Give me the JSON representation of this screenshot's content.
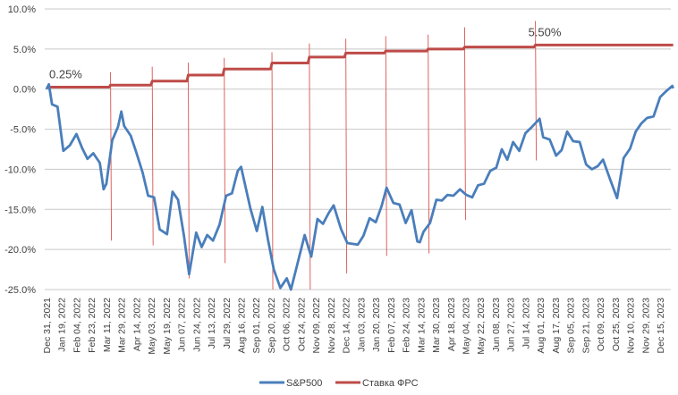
{
  "chart_data": {
    "type": "line",
    "title": "",
    "xlabel": "",
    "ylabel": "",
    "ylim": [
      -25,
      10
    ],
    "y_ticks": [
      "10.0%",
      "5.0%",
      "0.0%",
      "-5.0%",
      "-10.0%",
      "-15.0%",
      "-20.0%",
      "-25.0%"
    ],
    "y_tick_values": [
      10,
      5,
      0,
      -5,
      -10,
      -15,
      -20,
      -25
    ],
    "grid": "horizontal",
    "legend_position": "bottom",
    "x_tick_labels": [
      "Dec 31, 2021",
      "Jan 19, 2022",
      "Feb 04, 2022",
      "Feb 23, 2022",
      "Mar 11, 2022",
      "Mar 29, 2022",
      "Apr 14, 2022",
      "May 03, 2022",
      "May 19, 2022",
      "Jun 07, 2022",
      "Jun 24, 2022",
      "Jul 13, 2022",
      "Jul 29, 2022",
      "Aug 16, 2022",
      "Sep 01, 2022",
      "Sep 20, 2022",
      "Oct 06, 2022",
      "Oct 24, 2022",
      "Nov 09, 2022",
      "Nov 28, 2022",
      "Dec 14, 2022",
      "Jan 03, 2023",
      "Jan 20, 2023",
      "Feb 07, 2023",
      "Feb 24, 2023",
      "Mar 14, 2023",
      "Mar 30, 2023",
      "Apr 18, 2023",
      "May 04, 2023",
      "May 22, 2023",
      "Jun 08, 2023",
      "Jun 27, 2023",
      "Jul 14, 2023",
      "Aug 01, 2023",
      "Aug 17, 2023",
      "Sep 05, 2023",
      "Sep 21, 2023",
      "Oct 09, 2023",
      "Oct 25, 2023",
      "Nov 10, 2023",
      "Nov 29, 2023",
      "Dec 15, 2023"
    ],
    "series": [
      {
        "name": "S&P500",
        "color": "#4a7ebb",
        "points": [
          [
            "2021-12-31",
            0
          ],
          [
            "2022-01-03",
            0.6
          ],
          [
            "2022-01-07",
            -1.9
          ],
          [
            "2022-01-14",
            -2.2
          ],
          [
            "2022-01-21",
            -7.7
          ],
          [
            "2022-01-28",
            -7.0
          ],
          [
            "2022-02-04",
            -5.6
          ],
          [
            "2022-02-11",
            -7.3
          ],
          [
            "2022-02-18",
            -8.7
          ],
          [
            "2022-02-25",
            -8.0
          ],
          [
            "2022-03-04",
            -9.2
          ],
          [
            "2022-03-08",
            -12.5
          ],
          [
            "2022-03-11",
            -11.8
          ],
          [
            "2022-03-18",
            -6.4
          ],
          [
            "2022-03-25",
            -4.7
          ],
          [
            "2022-03-29",
            -2.8
          ],
          [
            "2022-04-01",
            -4.6
          ],
          [
            "2022-04-08",
            -5.8
          ],
          [
            "2022-04-14",
            -7.9
          ],
          [
            "2022-04-22",
            -10.4
          ],
          [
            "2022-04-29",
            -13.3
          ],
          [
            "2022-05-06",
            -13.5
          ],
          [
            "2022-05-12",
            -17.5
          ],
          [
            "2022-05-20",
            -18.1
          ],
          [
            "2022-05-27",
            -12.8
          ],
          [
            "2022-06-03",
            -13.8
          ],
          [
            "2022-06-10",
            -18.2
          ],
          [
            "2022-06-16",
            -23.1
          ],
          [
            "2022-06-24",
            -17.9
          ],
          [
            "2022-07-01",
            -19.7
          ],
          [
            "2022-07-08",
            -18.2
          ],
          [
            "2022-07-15",
            -18.9
          ],
          [
            "2022-07-22",
            -16.9
          ],
          [
            "2022-07-29",
            -13.3
          ],
          [
            "2022-08-05",
            -13.0
          ],
          [
            "2022-08-12",
            -10.2
          ],
          [
            "2022-08-16",
            -9.7
          ],
          [
            "2022-08-26",
            -14.9
          ],
          [
            "2022-09-02",
            -17.7
          ],
          [
            "2022-09-09",
            -14.7
          ],
          [
            "2022-09-16",
            -18.7
          ],
          [
            "2022-09-23",
            -22.5
          ],
          [
            "2022-09-30",
            -24.8
          ],
          [
            "2022-10-07",
            -23.6
          ],
          [
            "2022-10-12",
            -25.0
          ],
          [
            "2022-10-21",
            -21.3
          ],
          [
            "2022-10-28",
            -18.2
          ],
          [
            "2022-11-04",
            -20.9
          ],
          [
            "2022-11-11",
            -16.2
          ],
          [
            "2022-11-18",
            -16.8
          ],
          [
            "2022-11-25",
            -15.5
          ],
          [
            "2022-12-01",
            -14.5
          ],
          [
            "2022-12-09",
            -17.5
          ],
          [
            "2022-12-16",
            -19.2
          ],
          [
            "2022-12-23",
            -19.3
          ],
          [
            "2022-12-30",
            -19.4
          ],
          [
            "2023-01-06",
            -18.3
          ],
          [
            "2023-01-13",
            -16.1
          ],
          [
            "2023-01-20",
            -16.6
          ],
          [
            "2023-01-27",
            -14.6
          ],
          [
            "2023-02-02",
            -12.3
          ],
          [
            "2023-02-10",
            -14.2
          ],
          [
            "2023-02-17",
            -14.4
          ],
          [
            "2023-02-24",
            -16.7
          ],
          [
            "2023-03-03",
            -15.1
          ],
          [
            "2023-03-10",
            -19.0
          ],
          [
            "2023-03-13",
            -19.1
          ],
          [
            "2023-03-17",
            -17.8
          ],
          [
            "2023-03-24",
            -16.7
          ],
          [
            "2023-03-31",
            -13.8
          ],
          [
            "2023-04-07",
            -13.9
          ],
          [
            "2023-04-14",
            -13.2
          ],
          [
            "2023-04-21",
            -13.3
          ],
          [
            "2023-04-28",
            -12.5
          ],
          [
            "2023-05-05",
            -13.2
          ],
          [
            "2023-05-12",
            -13.5
          ],
          [
            "2023-05-19",
            -12.0
          ],
          [
            "2023-05-26",
            -11.8
          ],
          [
            "2023-06-02",
            -10.2
          ],
          [
            "2023-06-09",
            -9.8
          ],
          [
            "2023-06-16",
            -7.5
          ],
          [
            "2023-06-23",
            -8.8
          ],
          [
            "2023-06-30",
            -6.6
          ],
          [
            "2023-07-07",
            -7.7
          ],
          [
            "2023-07-14",
            -5.5
          ],
          [
            "2023-07-21",
            -4.8
          ],
          [
            "2023-07-31",
            -3.7
          ],
          [
            "2023-08-04",
            -6.0
          ],
          [
            "2023-08-11",
            -6.3
          ],
          [
            "2023-08-18",
            -8.3
          ],
          [
            "2023-08-25",
            -7.6
          ],
          [
            "2023-09-01",
            -5.3
          ],
          [
            "2023-09-08",
            -6.5
          ],
          [
            "2023-09-15",
            -6.6
          ],
          [
            "2023-09-22",
            -9.4
          ],
          [
            "2023-09-29",
            -10.0
          ],
          [
            "2023-10-06",
            -9.6
          ],
          [
            "2023-10-12",
            -8.8
          ],
          [
            "2023-10-20",
            -11.4
          ],
          [
            "2023-10-27",
            -13.6
          ],
          [
            "2023-11-03",
            -8.6
          ],
          [
            "2023-11-10",
            -7.4
          ],
          [
            "2023-11-17",
            -5.3
          ],
          [
            "2023-11-24",
            -4.3
          ],
          [
            "2023-12-01",
            -3.6
          ],
          [
            "2023-12-08",
            -3.4
          ],
          [
            "2023-12-15",
            -1.0
          ],
          [
            "2023-12-22",
            -0.2
          ],
          [
            "2023-12-28",
            0.4
          ],
          [
            "2023-12-29",
            0.1
          ]
        ]
      },
      {
        "name": "Ставка ФРС",
        "color": "#be4b48",
        "step": true,
        "points": [
          [
            "2021-12-31",
            0.25
          ],
          [
            "2022-03-16",
            0.5
          ],
          [
            "2022-05-04",
            1.0
          ],
          [
            "2022-06-15",
            1.75
          ],
          [
            "2022-07-27",
            2.5
          ],
          [
            "2022-09-21",
            3.25
          ],
          [
            "2022-11-02",
            4.0
          ],
          [
            "2022-12-14",
            4.5
          ],
          [
            "2023-02-01",
            4.75
          ],
          [
            "2023-03-22",
            5.0
          ],
          [
            "2023-05-03",
            5.25
          ],
          [
            "2023-07-26",
            5.5
          ],
          [
            "2023-12-29",
            5.5
          ]
        ]
      }
    ],
    "data_labels": [
      {
        "series": "Ставка ФРС",
        "date": "2021-12-31",
        "text": "0.25%"
      },
      {
        "series": "Ставка ФРС",
        "date": "2023-07-26",
        "text": "5.50%"
      }
    ],
    "fed_meeting_lines": {
      "color": "#d9534f",
      "items": [
        {
          "date": "2022-03-16",
          "from": -18.9,
          "to": 2.1
        },
        {
          "date": "2022-05-04",
          "from": -19.5,
          "to": 2.8
        },
        {
          "date": "2022-06-15",
          "from": -23.6,
          "to": 3.3
        },
        {
          "date": "2022-07-27",
          "from": -21.7,
          "to": 3.9
        },
        {
          "date": "2022-09-21",
          "from": -25,
          "to": 4.6
        },
        {
          "date": "2022-11-02",
          "from": -25,
          "to": 5.7
        },
        {
          "date": "2022-12-14",
          "from": -23,
          "to": 6.3
        },
        {
          "date": "2023-02-01",
          "from": -20.8,
          "to": 6.6
        },
        {
          "date": "2023-03-22",
          "from": -20.5,
          "to": 6.8
        },
        {
          "date": "2023-05-03",
          "from": -16.3,
          "to": 7.7
        },
        {
          "date": "2023-07-26",
          "from": -8.9,
          "to": 8.5
        }
      ]
    },
    "legend": [
      {
        "label": "S&P500",
        "color": "#4a7ebb"
      },
      {
        "label": "Ставка ФРС",
        "color": "#be4b48"
      }
    ]
  }
}
